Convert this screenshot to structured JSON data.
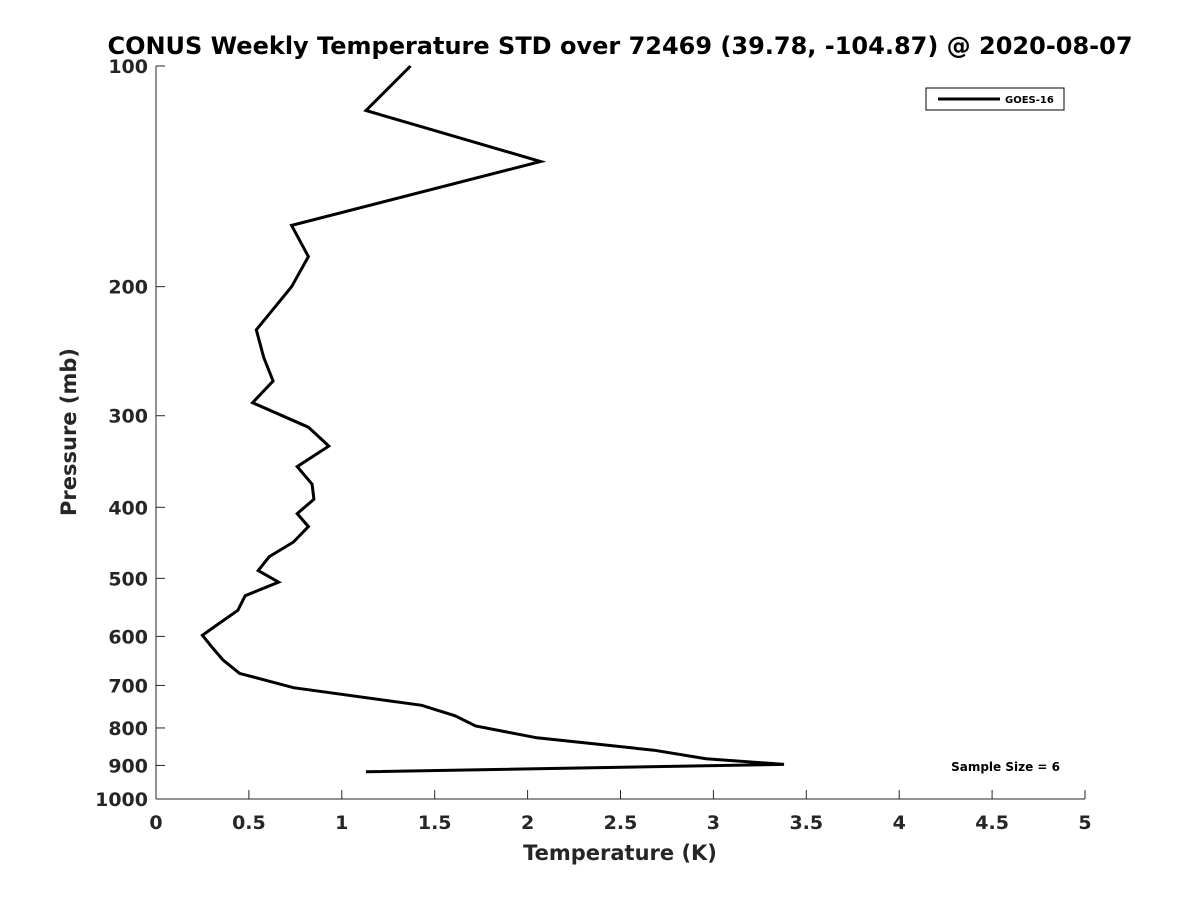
{
  "chart_data": {
    "type": "line",
    "title": "CONUS Weekly Temperature STD over 72469 (39.78, -104.87) @ 2020-08-07",
    "xlabel": "Temperature (K)",
    "ylabel": "Pressure (mb)",
    "xlim": [
      0,
      5
    ],
    "ylim": [
      100,
      1000
    ],
    "y_scale": "log",
    "y_reversed": true,
    "x_ticks": [
      0,
      0.5,
      1,
      1.5,
      2,
      2.5,
      3,
      3.5,
      4,
      4.5,
      5
    ],
    "x_tick_labels": [
      "0",
      "0.5",
      "1",
      "1.5",
      "2",
      "2.5",
      "3",
      "3.5",
      "4",
      "4.5",
      "5"
    ],
    "y_ticks": [
      100,
      200,
      300,
      400,
      500,
      600,
      700,
      800,
      900,
      1000
    ],
    "y_tick_labels": [
      "100",
      "200",
      "300",
      "400",
      "500",
      "600",
      "700",
      "800",
      "900",
      "1000"
    ],
    "grid": false,
    "legend_position": "top-right",
    "series": [
      {
        "name": "GOES-16",
        "color": "#000000",
        "x": [
          1.37,
          1.13,
          2.07,
          0.73,
          0.82,
          0.73,
          0.54,
          0.58,
          0.63,
          0.52,
          0.82,
          0.93,
          0.76,
          0.84,
          0.85,
          0.76,
          0.82,
          0.74,
          0.61,
          0.55,
          0.66,
          0.48,
          0.44,
          0.34,
          0.25,
          0.3,
          0.36,
          0.45,
          0.74,
          1.43,
          1.61,
          1.72,
          2.05,
          2.68,
          2.96,
          3.38,
          1.13
        ],
        "y": [
          100,
          115,
          135,
          165,
          182,
          200,
          229,
          250,
          269,
          288,
          311,
          330,
          352,
          372,
          390,
          408,
          425,
          446,
          467,
          488,
          506,
          528,
          553,
          576,
          598,
          620,
          646,
          674,
          705,
          745,
          770,
          795,
          825,
          858,
          881,
          897,
          918
        ]
      }
    ],
    "annotations": [
      {
        "text": "Sample Size = 6"
      }
    ]
  }
}
